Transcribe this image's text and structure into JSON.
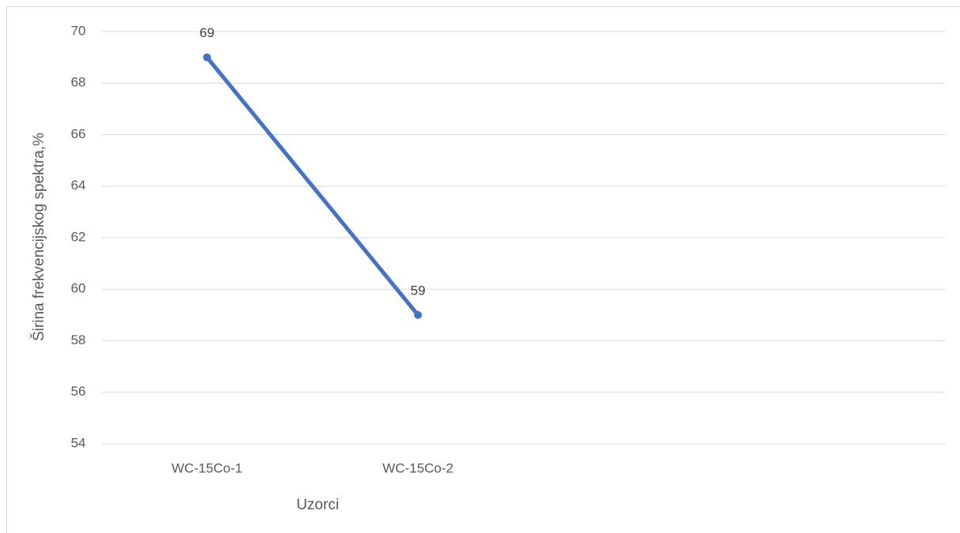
{
  "chart_data": {
    "type": "line",
    "xlabel": "Uzorci",
    "ylabel": "Širina frekvencijskog spektra,%",
    "categories": [
      "WC-15Co-1",
      "WC-15Co-2",
      null,
      null
    ],
    "values": [
      69,
      59,
      null,
      null
    ],
    "color": "#4472c4",
    "ylim": [
      54,
      70
    ],
    "yticks": [
      54,
      56,
      58,
      60,
      62,
      64,
      66,
      68,
      70
    ],
    "grid": true
  }
}
